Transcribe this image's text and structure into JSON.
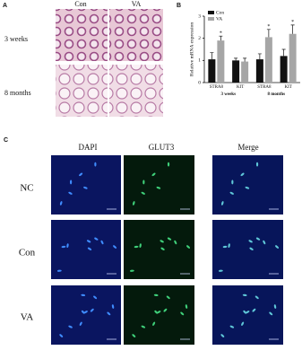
{
  "panels": {
    "a": {
      "label": "A",
      "columns": [
        "Con",
        "VA"
      ],
      "rows": [
        "3 weeks",
        "8 months"
      ]
    },
    "b": {
      "label": "B"
    },
    "c": {
      "label": "C",
      "columns": [
        "DAPI",
        "GLUT3",
        "Merge"
      ],
      "rows": [
        "NC",
        "Con",
        "VA"
      ]
    }
  },
  "chart_data": {
    "type": "bar",
    "y_label": "Relative mRNA expression",
    "categories": [
      "STRA8",
      "KIT",
      "STRA8",
      "KIT"
    ],
    "groups": [
      "3 weeks",
      "8 months"
    ],
    "series": [
      {
        "name": "Con",
        "color": "#111111",
        "values": [
          1.05,
          1.0,
          1.05,
          1.2
        ],
        "errors": [
          0.3,
          0.1,
          0.25,
          0.3
        ]
      },
      {
        "name": "VA",
        "color": "#a6a6a6",
        "values": [
          1.9,
          0.95,
          2.05,
          2.2
        ],
        "errors": [
          0.2,
          0.15,
          0.35,
          0.4
        ],
        "significance": [
          "*",
          null,
          "*",
          "*"
        ]
      }
    ],
    "ylim": [
      0,
      3
    ],
    "yticks": [
      0,
      1,
      2,
      3
    ],
    "legend": "top-left"
  }
}
